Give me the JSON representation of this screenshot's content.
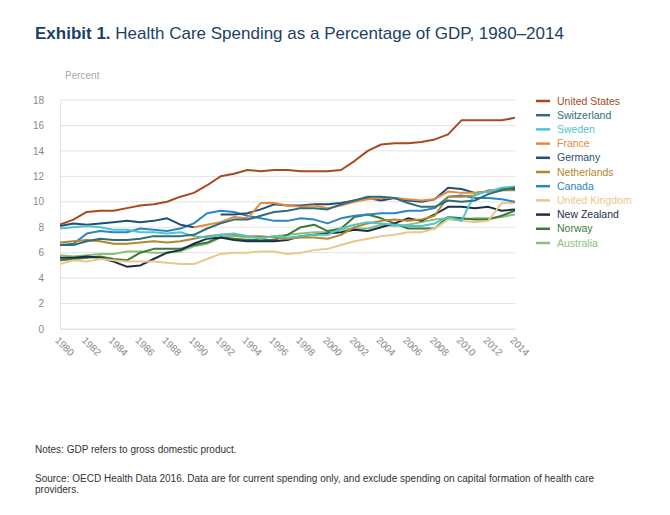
{
  "chart_data": {
    "type": "line",
    "title": "Exhibit 1. Health Care Spending as a Percentage of GDP, 1980–2014",
    "y_label": "Percent",
    "notes": "Notes: GDP refers to gross domestic product.",
    "source": "Source: OECD Health Data 2016. Data are for current spending only, and exclude spending on capital formation of health care providers.",
    "x": [
      1980,
      1981,
      1982,
      1983,
      1984,
      1985,
      1986,
      1987,
      1988,
      1989,
      1990,
      1991,
      1992,
      1993,
      1994,
      1995,
      1996,
      1997,
      1998,
      1999,
      2000,
      2001,
      2002,
      2003,
      2004,
      2005,
      2006,
      2007,
      2008,
      2009,
      2010,
      2011,
      2012,
      2013,
      2014
    ],
    "xlim": [
      1980,
      2014
    ],
    "xticks": [
      1980,
      1982,
      1984,
      1986,
      1988,
      1990,
      1992,
      1994,
      1996,
      1998,
      2000,
      2002,
      2004,
      2006,
      2008,
      2010,
      2012,
      2014
    ],
    "ylim": [
      0,
      18
    ],
    "yticks": [
      0,
      2,
      4,
      6,
      8,
      10,
      12,
      14,
      16,
      18
    ],
    "grid": true,
    "legend": "right",
    "series": [
      {
        "name": "United States",
        "color": "#a84a1e",
        "values": [
          8.2,
          8.6,
          9.2,
          9.3,
          9.3,
          9.5,
          9.7,
          9.8,
          10.0,
          10.4,
          10.7,
          11.3,
          12.0,
          12.2,
          12.5,
          12.4,
          12.5,
          12.5,
          12.4,
          12.4,
          12.4,
          12.5,
          13.2,
          14.0,
          14.5,
          14.6,
          14.6,
          14.7,
          14.9,
          15.3,
          16.4,
          16.4,
          16.4,
          16.4,
          16.6
        ]
      },
      {
        "name": "Switzerland",
        "color": "#2c6e7a",
        "values": [
          6.6,
          6.6,
          6.9,
          7.1,
          7.0,
          7.0,
          7.1,
          7.3,
          7.3,
          7.3,
          7.4,
          7.9,
          8.3,
          8.6,
          8.6,
          8.9,
          9.2,
          9.3,
          9.5,
          9.5,
          9.4,
          9.8,
          10.1,
          10.4,
          10.4,
          10.3,
          9.9,
          9.6,
          9.6,
          10.1,
          10.0,
          10.1,
          10.6,
          10.9,
          11.1
        ]
      },
      {
        "name": "Sweden",
        "color": "#4fc3d0",
        "values": [
          7.9,
          8.0,
          8.1,
          8.0,
          7.8,
          7.8,
          7.6,
          7.6,
          7.5,
          7.6,
          7.3,
          7.2,
          7.4,
          7.5,
          7.3,
          7.1,
          7.3,
          7.2,
          7.3,
          7.4,
          7.4,
          7.9,
          8.2,
          8.4,
          8.3,
          8.2,
          8.1,
          8.1,
          8.3,
          8.8,
          8.5,
          10.6,
          10.8,
          11.1,
          11.2
        ]
      },
      {
        "name": "France",
        "color": "#e8893a",
        "values": [
          null,
          null,
          null,
          null,
          null,
          null,
          null,
          null,
          null,
          null,
          8.0,
          8.2,
          8.4,
          8.8,
          8.7,
          9.9,
          9.9,
          9.7,
          9.6,
          9.7,
          9.5,
          9.7,
          10.0,
          10.2,
          10.3,
          10.3,
          10.2,
          10.1,
          10.2,
          10.8,
          10.7,
          10.7,
          10.8,
          10.9,
          11.1
        ]
      },
      {
        "name": "Germany",
        "color": "#1f4e79",
        "values": [
          8.1,
          8.3,
          8.2,
          8.3,
          8.4,
          8.5,
          8.4,
          8.5,
          8.7,
          8.2,
          8.0,
          null,
          9.0,
          9.0,
          9.1,
          9.4,
          9.8,
          9.7,
          9.7,
          9.8,
          9.8,
          9.9,
          10.1,
          10.3,
          10.1,
          10.3,
          10.1,
          10.0,
          10.2,
          11.1,
          11.0,
          10.7,
          10.8,
          11.0,
          11.0
        ]
      },
      {
        "name": "Netherlands",
        "color": "#b5862a",
        "values": [
          6.8,
          6.9,
          7.0,
          6.9,
          6.7,
          6.7,
          6.8,
          6.9,
          6.8,
          6.9,
          7.1,
          7.3,
          7.4,
          7.4,
          7.3,
          7.3,
          7.2,
          7.1,
          7.2,
          7.2,
          7.1,
          7.4,
          8.0,
          8.3,
          8.5,
          8.6,
          8.5,
          8.6,
          8.9,
          10.4,
          10.4,
          10.5,
          10.9,
          10.9,
          10.9
        ]
      },
      {
        "name": "Canada",
        "color": "#2a84c6",
        "values": [
          6.6,
          6.7,
          7.5,
          7.7,
          7.6,
          7.6,
          7.9,
          7.8,
          7.7,
          7.9,
          8.3,
          9.1,
          9.3,
          9.2,
          8.9,
          8.7,
          8.5,
          8.5,
          8.7,
          8.6,
          8.3,
          8.7,
          8.9,
          9.0,
          9.1,
          9.1,
          9.3,
          9.3,
          9.5,
          10.4,
          10.5,
          10.3,
          10.3,
          10.2,
          10.0
        ]
      },
      {
        "name": "United Kingdom",
        "color": "#e8c98a",
        "values": [
          5.1,
          5.4,
          5.3,
          5.5,
          5.4,
          5.3,
          5.3,
          5.3,
          5.2,
          5.1,
          5.1,
          5.5,
          5.9,
          6.0,
          6.0,
          6.1,
          6.1,
          5.9,
          6.0,
          6.2,
          6.3,
          6.6,
          6.9,
          7.1,
          7.3,
          7.4,
          7.6,
          7.6,
          7.9,
          8.6,
          8.5,
          8.4,
          8.5,
          9.9,
          9.9
        ]
      },
      {
        "name": "New Zealand",
        "color": "#1b2f4a",
        "values": [
          5.6,
          5.6,
          5.7,
          5.6,
          5.3,
          4.9,
          5.0,
          5.5,
          6.0,
          6.2,
          6.7,
          7.1,
          7.2,
          7.0,
          6.9,
          6.9,
          6.9,
          7.0,
          7.3,
          7.4,
          7.5,
          7.6,
          7.8,
          7.7,
          8.0,
          8.3,
          8.7,
          8.5,
          9.0,
          9.6,
          9.6,
          9.5,
          9.6,
          9.3,
          9.4
        ]
      },
      {
        "name": "Norway",
        "color": "#3c7a3a",
        "values": [
          5.4,
          5.5,
          5.6,
          5.7,
          5.5,
          5.4,
          6.0,
          6.3,
          6.3,
          6.3,
          6.6,
          6.8,
          7.2,
          7.1,
          7.0,
          7.0,
          7.0,
          7.4,
          8.0,
          8.2,
          7.7,
          7.9,
          8.8,
          9.0,
          8.7,
          8.3,
          7.9,
          7.9,
          7.9,
          8.8,
          8.7,
          8.6,
          8.6,
          8.9,
          9.3
        ]
      },
      {
        "name": "Australia",
        "color": "#8cc07a",
        "values": [
          5.8,
          5.7,
          5.8,
          5.9,
          5.9,
          6.1,
          6.1,
          6.0,
          6.0,
          6.1,
          6.5,
          6.7,
          7.2,
          7.3,
          7.2,
          7.2,
          7.3,
          7.4,
          7.5,
          7.6,
          7.6,
          7.8,
          7.9,
          7.9,
          8.2,
          8.1,
          8.2,
          8.4,
          8.6,
          8.7,
          8.6,
          8.7,
          8.7,
          8.8,
          9.0
        ]
      }
    ]
  }
}
